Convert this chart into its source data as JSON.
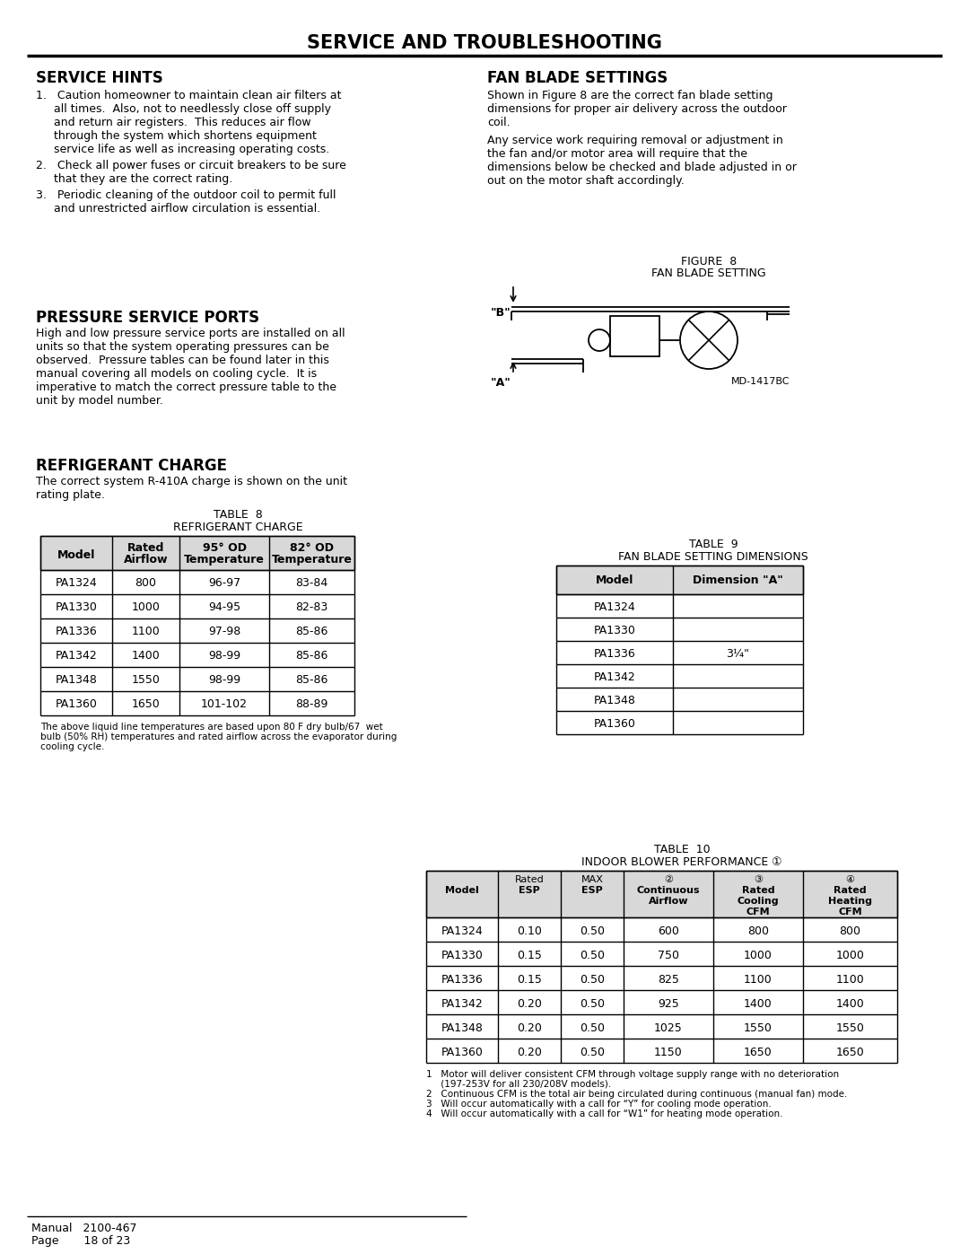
{
  "title": "SERVICE AND TROUBLESHOOTING",
  "bg_color": "#ffffff",
  "service_hints_title": "SERVICE HINTS",
  "fan_blade_title": "FAN BLADE SETTINGS",
  "pressure_title": "PRESSURE SERVICE PORTS",
  "refrigerant_title": "REFRIGERANT CHARGE",
  "figure8_title": "FIGURE  8",
  "figure8_subtitle": "FAN BLADE SETTING",
  "figure8_label_md": "MD-1417BC",
  "table8_title": "TABLE  8",
  "table8_subtitle": "REFRIGERANT CHARGE",
  "table8_headers": [
    "Model",
    "Rated\nAirflow",
    "95° OD\nTemperature",
    "82° OD\nTemperature"
  ],
  "table8_rows": [
    [
      "PA1324",
      "800",
      "96-97",
      "83-84"
    ],
    [
      "PA1330",
      "1000",
      "94-95",
      "82-83"
    ],
    [
      "PA1336",
      "1100",
      "97-98",
      "85-86"
    ],
    [
      "PA1342",
      "1400",
      "98-99",
      "85-86"
    ],
    [
      "PA1348",
      "1550",
      "98-99",
      "85-86"
    ],
    [
      "PA1360",
      "1650",
      "101-102",
      "88-89"
    ]
  ],
  "table8_footnote_lines": [
    "The above liquid line temperatures are based upon 80 F dry bulb/67  wet",
    "bulb (50% RH) temperatures and rated airflow across the evaporator during",
    "cooling cycle."
  ],
  "table9_title": "TABLE  9",
  "table9_subtitle": "FAN BLADE SETTING DIMENSIONS",
  "table9_headers": [
    "Model",
    "Dimension \"A\""
  ],
  "table9_rows": [
    "PA1324",
    "PA1330",
    "PA1336",
    "PA1342",
    "PA1348",
    "PA1360"
  ],
  "table9_dim_value": "3¼\"",
  "table10_title": "TABLE  10",
  "table10_subtitle": "INDOOR BLOWER PERFORMANCE ①",
  "table10_headers_line1": [
    "",
    "Rated",
    "MAX",
    "②",
    "③",
    "④"
  ],
  "table10_headers_line2": [
    "Model",
    "ESP",
    "ESP",
    "Continuous",
    "Rated",
    "Rated"
  ],
  "table10_headers_line3": [
    "",
    "",
    "",
    "Airflow",
    "Cooling",
    "Heating"
  ],
  "table10_headers_line4": [
    "",
    "",
    "",
    "",
    "CFM",
    "CFM"
  ],
  "table10_rows": [
    [
      "PA1324",
      "0.10",
      "0.50",
      "600",
      "800",
      "800"
    ],
    [
      "PA1330",
      "0.15",
      "0.50",
      "750",
      "1000",
      "1000"
    ],
    [
      "PA1336",
      "0.15",
      "0.50",
      "825",
      "1100",
      "1100"
    ],
    [
      "PA1342",
      "0.20",
      "0.50",
      "925",
      "1400",
      "1400"
    ],
    [
      "PA1348",
      "0.20",
      "0.50",
      "1025",
      "1550",
      "1550"
    ],
    [
      "PA1360",
      "0.20",
      "0.50",
      "1150",
      "1650",
      "1650"
    ]
  ],
  "table10_footnotes": [
    "1   Motor will deliver consistent CFM through voltage supply range with no deterioration",
    "     (197-253V for all 230/208V models).",
    "2   Continuous CFM is the total air being circulated during continuous (manual fan) mode.",
    "3   Will occur automatically with a call for “Y” for cooling mode operation.",
    "4   Will occur automatically with a call for “W1” for heating mode operation."
  ],
  "footer_manual": "Manual   2100-467",
  "footer_page": "Page       18 of 23"
}
